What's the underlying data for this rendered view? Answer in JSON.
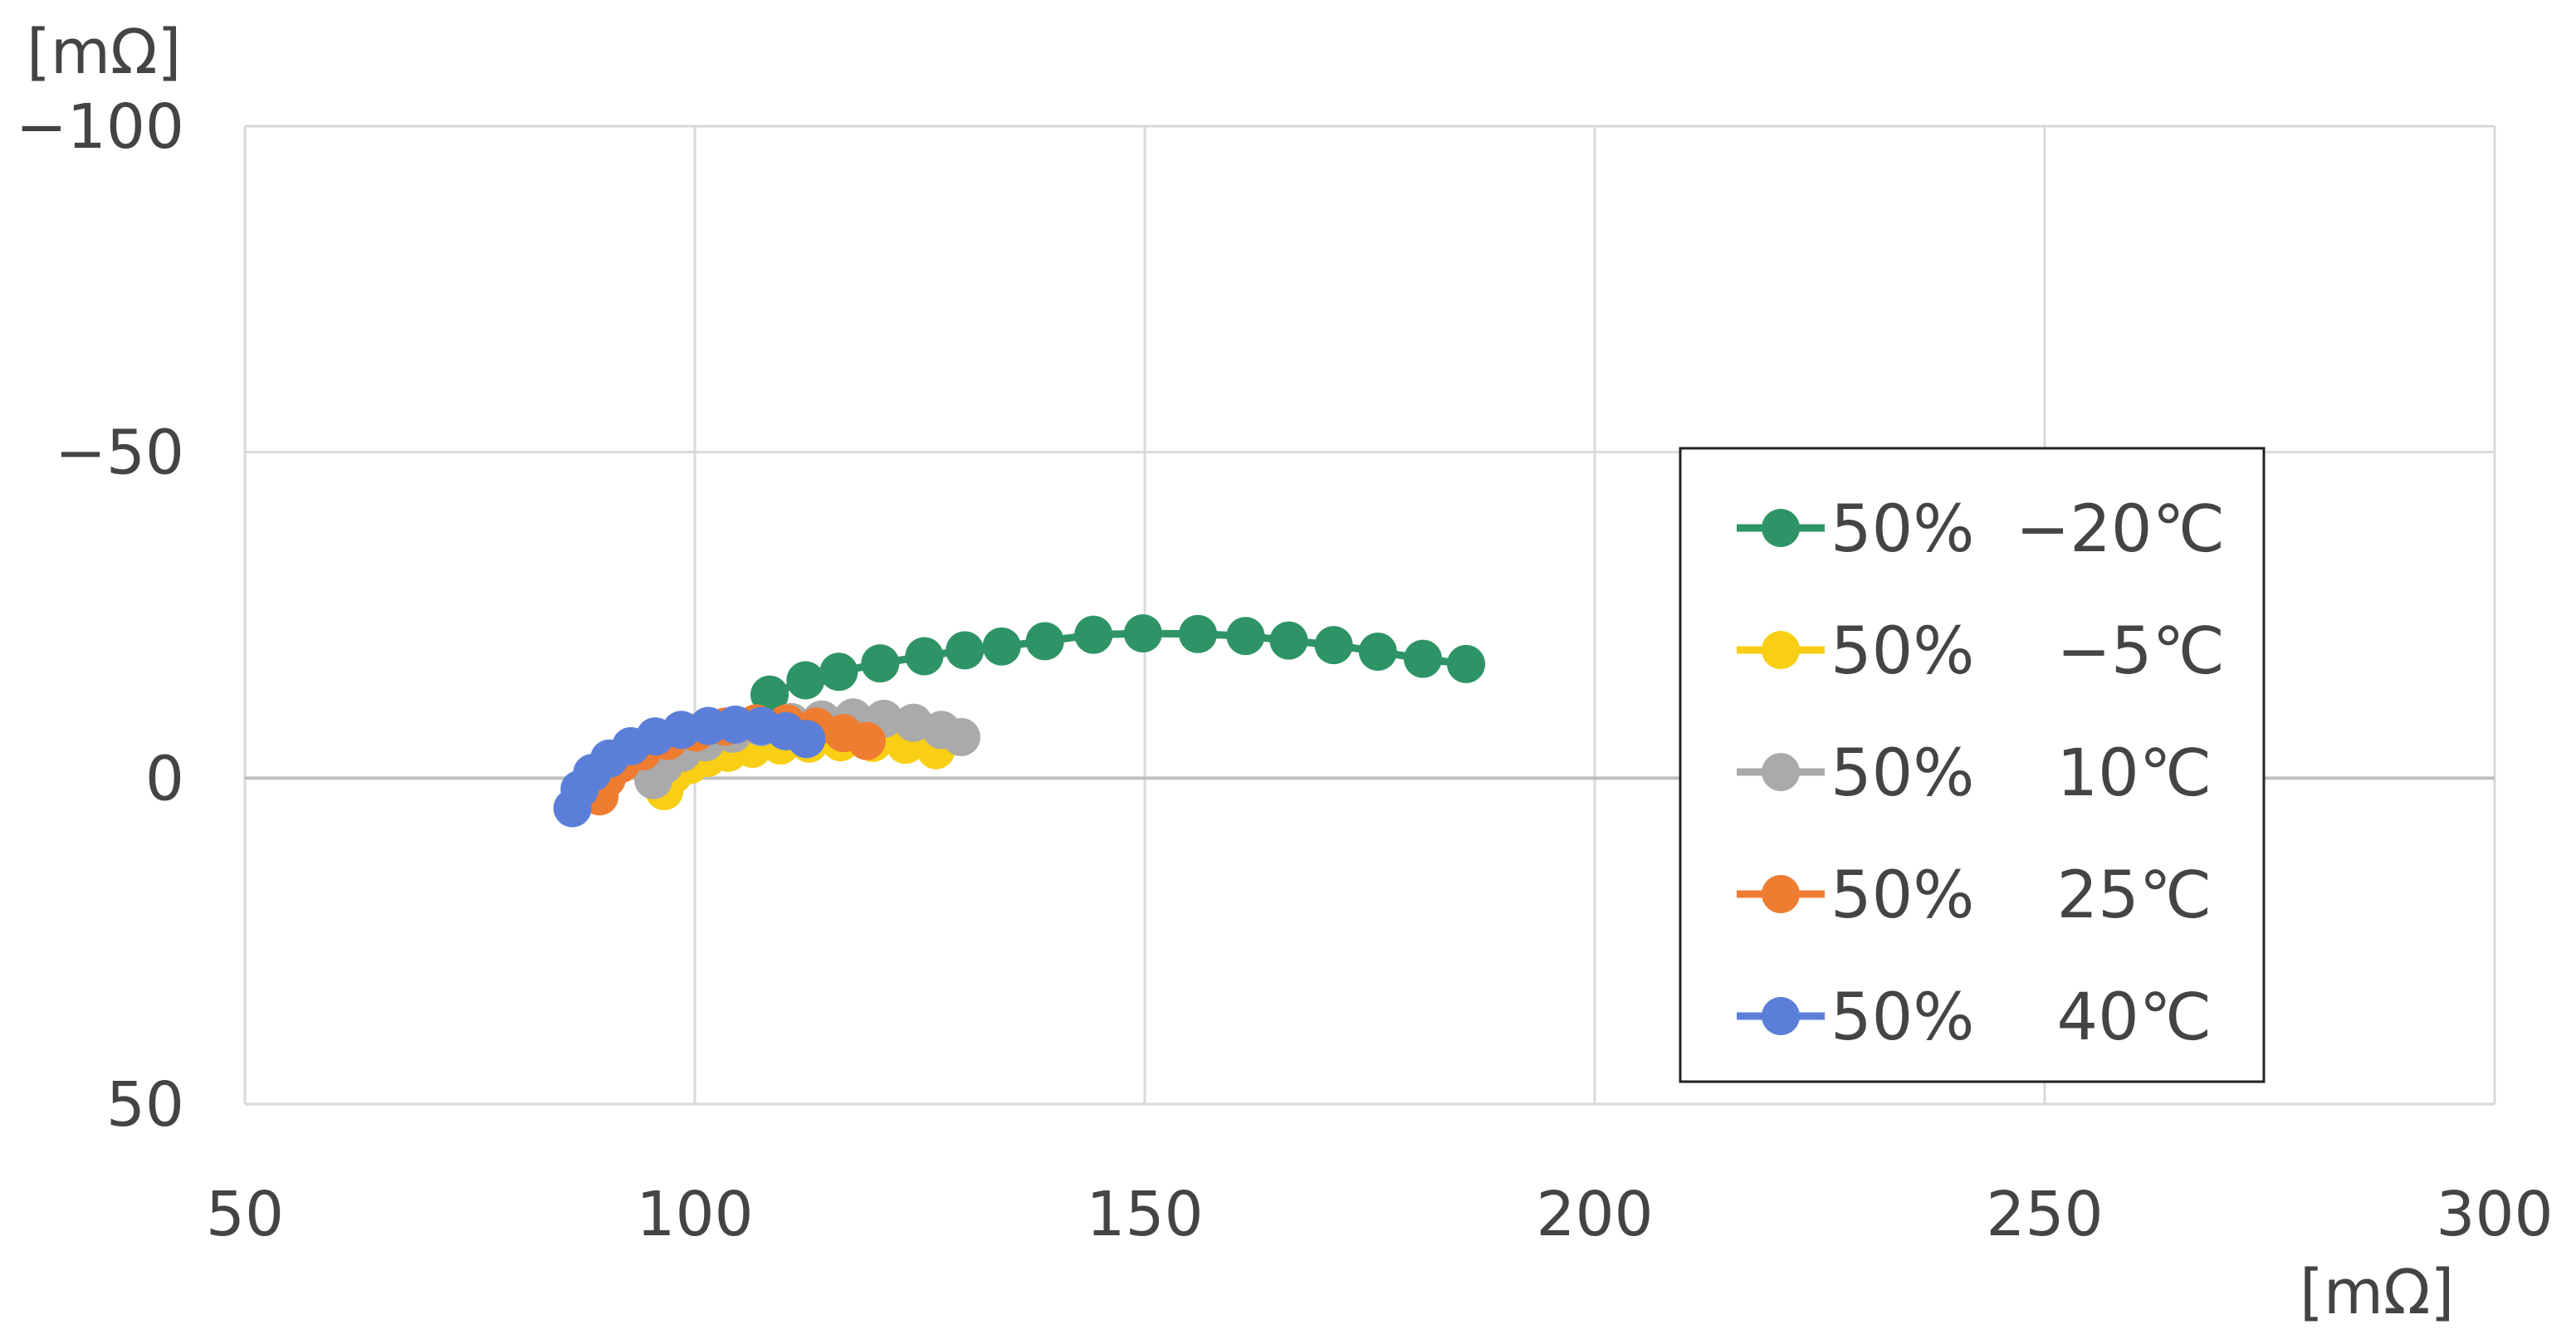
{
  "chart_data": {
    "type": "scatter",
    "ylabel": "[mΩ]",
    "xlabel": "[mΩ]",
    "xlim": [
      50,
      300
    ],
    "ylim": [
      -100,
      50
    ],
    "y_inverted": true,
    "xticks": [
      50,
      100,
      150,
      200,
      250,
      300
    ],
    "yticks": [
      -100,
      -50,
      0,
      50
    ],
    "xtick_labels": [
      "50",
      "100",
      "150",
      "200",
      "250",
      "300"
    ],
    "ytick_labels": [
      "−100",
      "−50",
      "0",
      "50"
    ],
    "grid": true,
    "legend_position": "right",
    "series": [
      {
        "name": "50%  −20℃",
        "color": "#2e9466",
        "points": [
          [
            108.3,
            -12.8
          ],
          [
            112.3,
            -15.0
          ],
          [
            116.0,
            -16.3
          ],
          [
            120.6,
            -17.6
          ],
          [
            125.5,
            -18.7
          ],
          [
            130.0,
            -19.6
          ],
          [
            134.1,
            -20.2
          ],
          [
            138.9,
            -21.0
          ],
          [
            144.3,
            -22.0
          ],
          [
            149.8,
            -22.2
          ],
          [
            155.9,
            -22.1
          ],
          [
            161.2,
            -21.8
          ],
          [
            166.0,
            -21.1
          ],
          [
            171.0,
            -20.4
          ],
          [
            175.9,
            -19.4
          ],
          [
            180.9,
            -18.3
          ],
          [
            185.7,
            -17.5
          ]
        ]
      },
      {
        "name": "50%    −5℃",
        "color": "#f8cf14",
        "points": [
          [
            96.6,
            2.0
          ],
          [
            97.6,
            -0.5
          ],
          [
            99.4,
            -2.0
          ],
          [
            101.4,
            -3.1
          ],
          [
            103.7,
            -3.9
          ],
          [
            106.4,
            -4.5
          ],
          [
            109.5,
            -5.0
          ],
          [
            112.7,
            -5.3
          ],
          [
            116.2,
            -5.5
          ],
          [
            119.8,
            -5.4
          ],
          [
            123.4,
            -5.1
          ],
          [
            126.8,
            -4.3
          ]
        ]
      },
      {
        "name": "50%    10℃",
        "color": "#aaaaaa",
        "points": [
          [
            95.4,
            0.3
          ],
          [
            96.6,
            -2.0
          ],
          [
            98.6,
            -3.9
          ],
          [
            101.2,
            -5.5
          ],
          [
            104.2,
            -6.8
          ],
          [
            107.4,
            -7.8
          ],
          [
            110.7,
            -8.6
          ],
          [
            114.1,
            -9.0
          ],
          [
            117.6,
            -9.3
          ],
          [
            121.0,
            -9.1
          ],
          [
            124.3,
            -8.5
          ],
          [
            127.4,
            -7.4
          ],
          [
            129.6,
            -6.3
          ]
        ]
      },
      {
        "name": "50%    25℃",
        "color": "#ee7d31",
        "points": [
          [
            89.4,
            2.8
          ],
          [
            90.2,
            0.1
          ],
          [
            91.8,
            -2.2
          ],
          [
            94.2,
            -4.1
          ],
          [
            97.0,
            -5.7
          ],
          [
            100.1,
            -7.0
          ],
          [
            103.4,
            -7.9
          ],
          [
            106.8,
            -8.4
          ],
          [
            110.2,
            -8.4
          ],
          [
            113.5,
            -7.9
          ],
          [
            116.5,
            -6.9
          ],
          [
            119.1,
            -5.7
          ]
        ]
      },
      {
        "name": "50%    40℃",
        "color": "#5b7fd9",
        "points": [
          [
            86.4,
            4.6
          ],
          [
            87.2,
            1.7
          ],
          [
            88.6,
            -0.8
          ],
          [
            90.5,
            -3.0
          ],
          [
            92.9,
            -4.9
          ],
          [
            95.6,
            -6.4
          ],
          [
            98.5,
            -7.4
          ],
          [
            101.5,
            -8.0
          ],
          [
            104.5,
            -8.2
          ],
          [
            107.4,
            -8.0
          ],
          [
            110.1,
            -7.2
          ],
          [
            112.4,
            -6.0
          ]
        ]
      }
    ]
  }
}
